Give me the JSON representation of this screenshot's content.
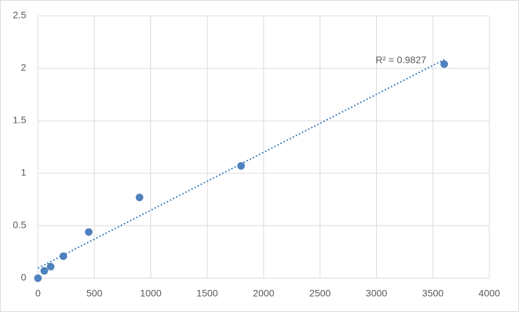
{
  "chart_data": {
    "type": "scatter",
    "annotation": "R² = 0.9827",
    "series": [
      {
        "color": "#4f81bd",
        "x": [
          0,
          56.25,
          112.5,
          225,
          450,
          900,
          1800,
          3600
        ],
        "values": [
          0,
          0.07,
          0.11,
          0.21,
          0.44,
          0.77,
          1.07,
          2.04
        ]
      }
    ],
    "trendline": {
      "type": "linear",
      "color": "#2e75b6"
    },
    "xlim": [
      0,
      4000
    ],
    "xticks": [
      0,
      500,
      1000,
      1500,
      2000,
      2500,
      3000,
      3500,
      4000
    ],
    "ylim": [
      0,
      2.5
    ],
    "yticks": [
      0,
      0.5,
      1,
      1.5,
      2,
      2.5
    ],
    "grid": true
  }
}
